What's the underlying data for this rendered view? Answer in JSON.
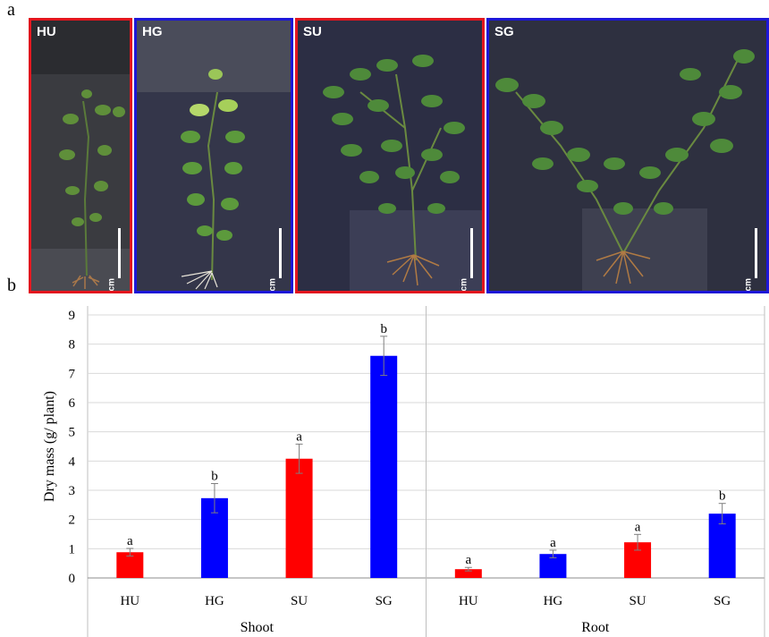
{
  "figure": {
    "panel_a_letter": "a",
    "panel_b_letter": "b"
  },
  "photos": [
    {
      "label": "HU",
      "scale": "10 cm",
      "border": "#e3161e",
      "plant": "small"
    },
    {
      "label": "HG",
      "scale": "10 cm",
      "border": "#1d17d8",
      "plant": "tall"
    },
    {
      "label": "SU",
      "scale": "10 cm",
      "border": "#e3161e",
      "plant": "bushy"
    },
    {
      "label": "SG",
      "scale": "10 cm",
      "border": "#1d17d8",
      "plant": "wide"
    }
  ],
  "colors": {
    "red": "#ff0000",
    "blue": "#0000ff"
  },
  "chart_data": {
    "type": "bar",
    "ylabel": "Dry mass (g/ plant)",
    "ylim": [
      0,
      9
    ],
    "yticks": [
      0,
      1,
      2,
      3,
      4,
      5,
      6,
      7,
      8,
      9
    ],
    "grid": true,
    "groups": [
      {
        "name": "Shoot",
        "bars": [
          {
            "category": "HU",
            "value": 0.88,
            "error": 0.13,
            "letter": "a",
            "color": "red"
          },
          {
            "category": "HG",
            "value": 2.73,
            "error": 0.5,
            "letter": "b",
            "color": "blue"
          },
          {
            "category": "SU",
            "value": 4.08,
            "error": 0.5,
            "letter": "a",
            "color": "red"
          },
          {
            "category": "SG",
            "value": 7.6,
            "error": 0.67,
            "letter": "b",
            "color": "blue"
          }
        ]
      },
      {
        "name": "Root",
        "bars": [
          {
            "category": "HU",
            "value": 0.3,
            "error": 0.06,
            "letter": "a",
            "color": "red"
          },
          {
            "category": "HG",
            "value": 0.82,
            "error": 0.13,
            "letter": "a",
            "color": "blue"
          },
          {
            "category": "SU",
            "value": 1.22,
            "error": 0.27,
            "letter": "a",
            "color": "red"
          },
          {
            "category": "SG",
            "value": 2.2,
            "error": 0.35,
            "letter": "b",
            "color": "blue"
          }
        ]
      }
    ]
  }
}
